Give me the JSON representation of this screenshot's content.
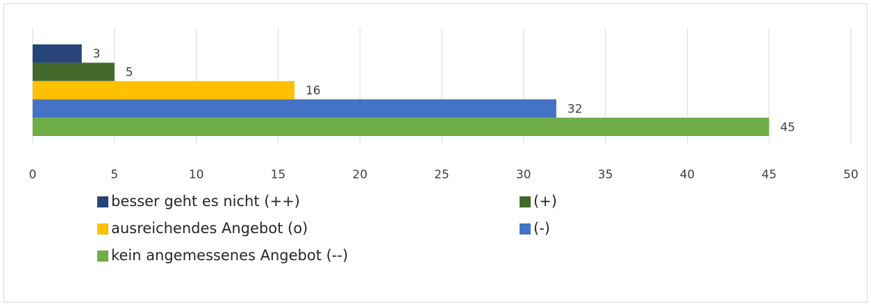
{
  "chart_data": {
    "type": "bar",
    "orientation": "horizontal",
    "series": [
      {
        "name": "besser geht es nicht (++)",
        "color": "#264478",
        "values": [
          3
        ]
      },
      {
        "name": "(+)",
        "color": "#43682b",
        "values": [
          5
        ]
      },
      {
        "name": "ausreichendes Angebot (o)",
        "color": "#ffc000",
        "values": [
          16
        ]
      },
      {
        "name": "(-)",
        "color": "#4472c4",
        "values": [
          32
        ]
      },
      {
        "name": "kein angemessenes Angebot (--)",
        "color": "#70ad47",
        "values": [
          45
        ]
      }
    ],
    "xlim": [
      0,
      50
    ],
    "xticks": [
      0,
      5,
      10,
      15,
      20,
      25,
      30,
      35,
      40,
      45,
      50
    ],
    "grid": true
  }
}
